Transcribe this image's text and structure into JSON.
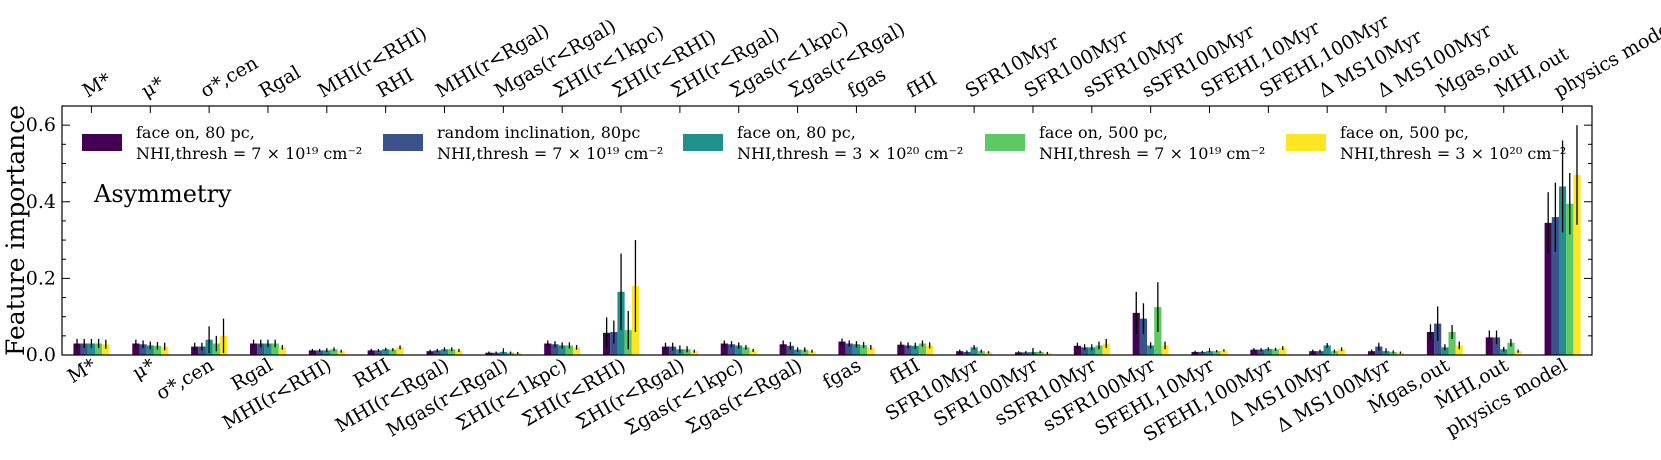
{
  "chart_data": {
    "type": "bar",
    "title": "",
    "annotation": "Asymmetry",
    "xlabel": "",
    "ylabel": "Feature importance",
    "ylim": [
      0,
      0.65
    ],
    "yticks": [
      "0.0",
      "0.2",
      "0.4",
      "0.6"
    ],
    "ytick_values": [
      0.0,
      0.2,
      0.4,
      0.6
    ],
    "categories": [
      "M*",
      "μ*",
      "σ*,cen",
      "Rgal",
      "MHI(r<RHI)",
      "RHI",
      "MHI(r<Rgal)",
      "Mgas(r<Rgal)",
      "ΣHI(r<1kpc)",
      "Σ̄HI(r<RHI)",
      "Σ̄HI(r<Rgal)",
      "Σgas(r<1kpc)",
      "Σgas(r<Rgal)",
      "fgas",
      "fHI",
      "SFR10Myr",
      "SFR100Myr",
      "sSFR10Myr",
      "sSFR100Myr",
      "SFEHI,10Myr",
      "SFEHI,100Myr",
      "Δ MS10Myr",
      "Δ MS100Myr",
      "Ṁgas,out",
      "ṀHI,out",
      "physics model"
    ],
    "series": [
      {
        "name": "face on, 80 pc, N_HI,thresh = 7 × 10^19 cm^-2",
        "color": "#440154",
        "values": [
          0.03,
          0.03,
          0.022,
          0.03,
          0.012,
          0.012,
          0.01,
          0.006,
          0.03,
          0.058,
          0.022,
          0.03,
          0.028,
          0.035,
          0.027,
          0.01,
          0.007,
          0.024,
          0.11,
          0.008,
          0.014,
          0.01,
          0.01,
          0.06,
          0.046,
          0.345
        ],
        "errors": [
          0.012,
          0.01,
          0.01,
          0.01,
          0.004,
          0.004,
          0.004,
          0.003,
          0.008,
          0.04,
          0.01,
          0.008,
          0.01,
          0.008,
          0.008,
          0.004,
          0.003,
          0.008,
          0.055,
          0.003,
          0.004,
          0.004,
          0.004,
          0.02,
          0.018,
          0.08
        ]
      },
      {
        "name": "random inclination, 80pc, N_HI,thresh = 7 × 10^19 cm^-2",
        "color": "#3b528b",
        "values": [
          0.03,
          0.028,
          0.022,
          0.03,
          0.012,
          0.012,
          0.012,
          0.006,
          0.028,
          0.06,
          0.022,
          0.028,
          0.024,
          0.03,
          0.025,
          0.008,
          0.007,
          0.02,
          0.095,
          0.008,
          0.014,
          0.01,
          0.022,
          0.082,
          0.046,
          0.36
        ],
        "errors": [
          0.012,
          0.01,
          0.01,
          0.01,
          0.004,
          0.004,
          0.004,
          0.003,
          0.008,
          0.03,
          0.01,
          0.008,
          0.01,
          0.008,
          0.008,
          0.004,
          0.003,
          0.008,
          0.04,
          0.003,
          0.004,
          0.004,
          0.01,
          0.045,
          0.018,
          0.09
        ]
      },
      {
        "name": "face on, 80 pc, N_HI,thresh = 3 × 10^20 cm^-2",
        "color": "#21908d",
        "values": [
          0.03,
          0.025,
          0.04,
          0.03,
          0.012,
          0.015,
          0.015,
          0.008,
          0.025,
          0.165,
          0.015,
          0.025,
          0.014,
          0.028,
          0.024,
          0.02,
          0.008,
          0.02,
          0.025,
          0.01,
          0.016,
          0.025,
          0.01,
          0.02,
          0.015,
          0.44
        ],
        "errors": [
          0.012,
          0.01,
          0.035,
          0.01,
          0.004,
          0.004,
          0.005,
          0.004,
          0.008,
          0.1,
          0.01,
          0.008,
          0.006,
          0.008,
          0.008,
          0.006,
          0.01,
          0.008,
          0.008,
          0.003,
          0.004,
          0.006,
          0.004,
          0.008,
          0.006,
          0.12
        ]
      },
      {
        "name": "face on, 500 pc, N_HI,thresh = 7 × 10^19 cm^-2",
        "color": "#5ec962",
        "values": [
          0.03,
          0.024,
          0.03,
          0.03,
          0.015,
          0.014,
          0.015,
          0.006,
          0.025,
          0.065,
          0.015,
          0.02,
          0.014,
          0.026,
          0.03,
          0.01,
          0.008,
          0.025,
          0.125,
          0.01,
          0.015,
          0.01,
          0.008,
          0.06,
          0.032,
          0.395
        ],
        "errors": [
          0.012,
          0.01,
          0.02,
          0.01,
          0.005,
          0.004,
          0.005,
          0.003,
          0.008,
          0.05,
          0.008,
          0.006,
          0.006,
          0.008,
          0.008,
          0.004,
          0.003,
          0.01,
          0.065,
          0.003,
          0.004,
          0.004,
          0.004,
          0.018,
          0.01,
          0.08
        ]
      },
      {
        "name": "face on, 500 pc, N_HI,thresh = 3 × 10^20 cm^-2",
        "color": "#fde725",
        "values": [
          0.028,
          0.022,
          0.05,
          0.02,
          0.01,
          0.02,
          0.012,
          0.005,
          0.02,
          0.18,
          0.01,
          0.012,
          0.01,
          0.02,
          0.025,
          0.007,
          0.005,
          0.03,
          0.025,
          0.012,
          0.018,
          0.015,
          0.006,
          0.025,
          0.01,
          0.47
        ],
        "errors": [
          0.012,
          0.01,
          0.045,
          0.006,
          0.004,
          0.005,
          0.004,
          0.003,
          0.006,
          0.12,
          0.004,
          0.004,
          0.004,
          0.006,
          0.008,
          0.003,
          0.003,
          0.012,
          0.01,
          0.003,
          0.005,
          0.005,
          0.003,
          0.01,
          0.004,
          0.13
        ]
      }
    ],
    "legend": {
      "placement": "top",
      "entries": [
        {
          "line1": "face on, 80 pc,",
          "line2": "NHI,thresh = 7 × 10¹⁹ cm⁻²",
          "color": "#440154"
        },
        {
          "line1": "random inclination, 80pc",
          "line2": "NHI,thresh = 7 × 10¹⁹ cm⁻²",
          "color": "#3b528b"
        },
        {
          "line1": "face on, 80 pc,",
          "line2": "NHI,thresh = 3 × 10²⁰ cm⁻²",
          "color": "#21908d"
        },
        {
          "line1": "face on, 500 pc,",
          "line2": "NHI,thresh = 7 × 10¹⁹ cm⁻²",
          "color": "#5ec962"
        },
        {
          "line1": "face on, 500 pc,",
          "line2": "NHI,thresh = 3 × 10²⁰ cm⁻²",
          "color": "#fde725"
        }
      ]
    }
  }
}
